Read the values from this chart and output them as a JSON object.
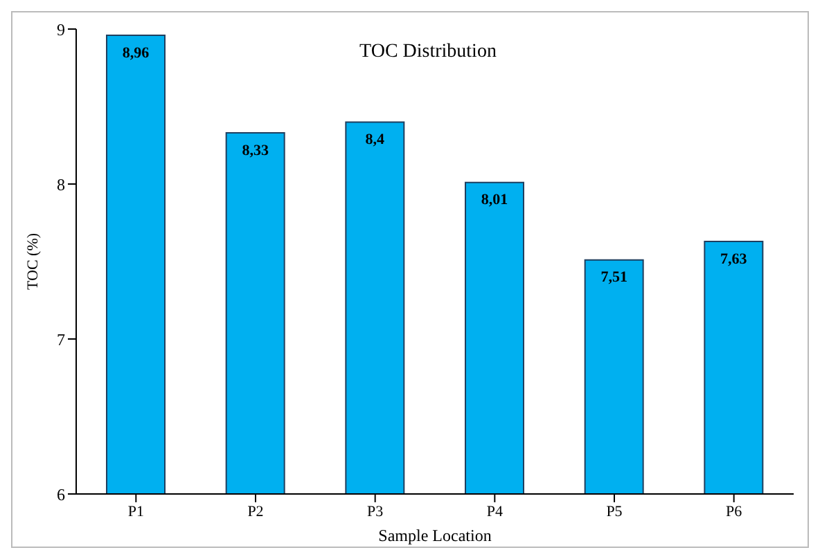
{
  "chart_data": {
    "type": "bar",
    "title": "TOC Distribution",
    "xlabel": "Sample Location",
    "ylabel": "TOC (%)",
    "categories": [
      "P1",
      "P2",
      "P3",
      "P4",
      "P5",
      "P6"
    ],
    "values": [
      8.96,
      8.33,
      8.4,
      8.01,
      7.51,
      7.63
    ],
    "value_labels": [
      "8,96",
      "8,33",
      "8,4",
      "8,01",
      "7,51",
      "7,63"
    ],
    "color": "#00b0f0",
    "ylim": [
      6,
      9
    ],
    "yticks": [
      6,
      7,
      8,
      9
    ],
    "grid": false,
    "legend": false
  }
}
